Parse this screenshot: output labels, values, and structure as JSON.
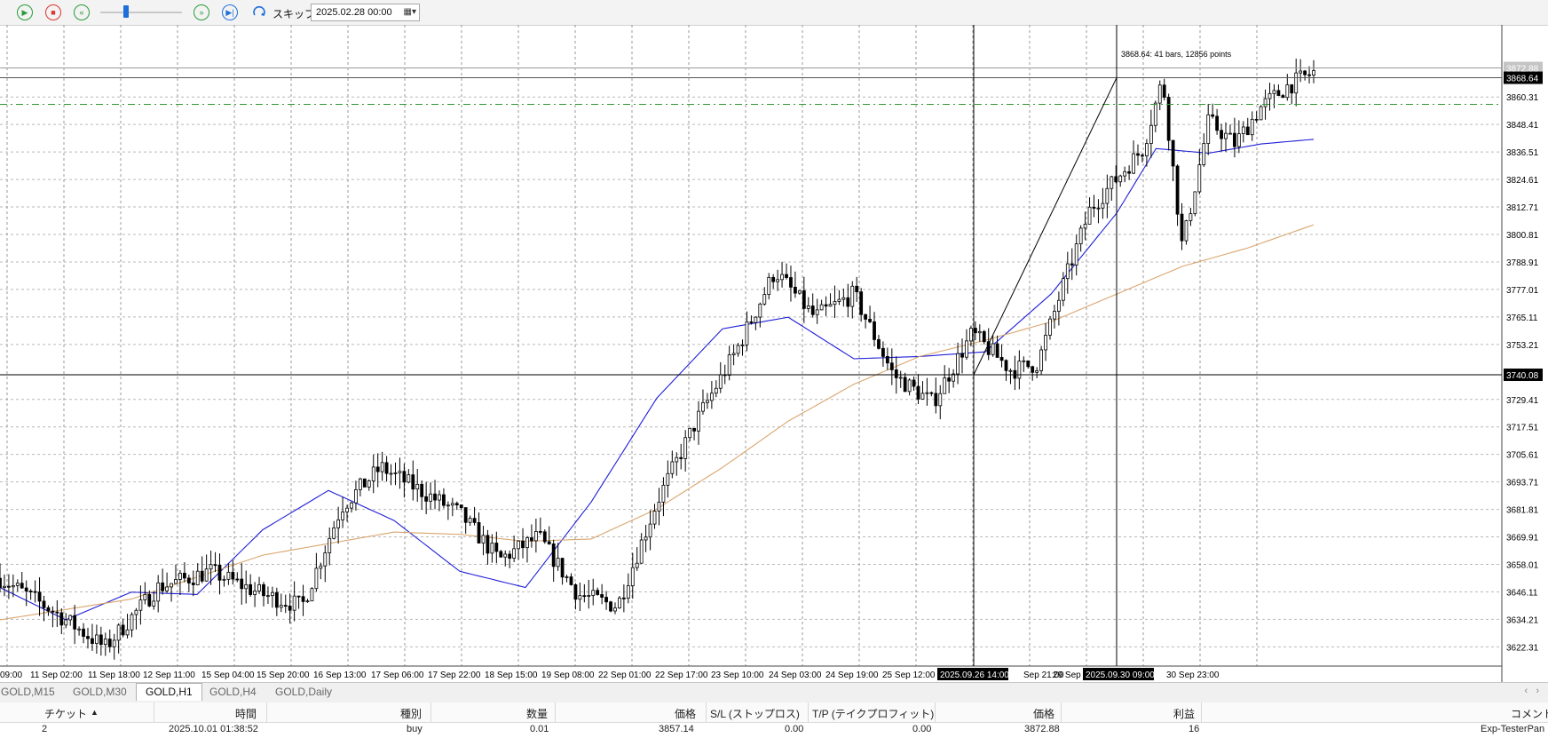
{
  "toolbar": {
    "skip_label": "スキップ",
    "date_value": "2025.02.28 00:00"
  },
  "chart": {
    "price_labels": [
      "3872.88",
      "3868.64",
      "3860.31",
      "3848.41",
      "3836.51",
      "3824.61",
      "3812.71",
      "3800.81",
      "3788.91",
      "3777.01",
      "3765.11",
      "3753.21",
      "3740.08",
      "3729.41",
      "3717.51",
      "3705.61",
      "3693.71",
      "3681.81",
      "3669.91",
      "3658.01",
      "3646.11",
      "3634.21",
      "3622.31"
    ],
    "time_labels": [
      "09:00",
      "11 Sep 02:00",
      "11 Sep 18:00",
      "12 Sep 11:00",
      "15 Sep 04:00",
      "15 Sep 20:00",
      "16 Sep 13:00",
      "17 Sep 06:00",
      "17 Sep 22:00",
      "18 Sep 15:00",
      "19 Sep 08:00",
      "22 Sep 01:00",
      "22 Sep 17:00",
      "23 Sep 10:00",
      "24 Sep 03:00",
      "24 Sep 19:00",
      "25 Sep 12:00",
      "Sep 21:00",
      "29 Sep",
      "30 Sep 23:00"
    ],
    "crosshair_time_labels": [
      "2025.09.26 14:00",
      "2025.09.30 09:00"
    ],
    "current_price_label": "3868.64",
    "ask_price_label": "3872.88",
    "crosshair_price_label": "3740.08",
    "measure_label": "3868.64: 41 bars, 12856 points"
  },
  "chart_data": {
    "type": "candlestick",
    "symbol": "GOLD",
    "timeframe": "H1",
    "ylim": [
      3614,
      3880
    ],
    "levels": {
      "bid": 3868.64,
      "ask": 3872.88,
      "trade_entry": 3857.14,
      "crosshair": 3740.08
    },
    "series": [
      {
        "color": "#000000",
        "x": [
          0,
          0.04,
          0.08,
          0.12,
          0.16,
          0.2,
          0.23,
          0.26,
          0.29,
          0.32,
          0.35,
          0.38,
          0.41,
          0.44,
          0.47,
          0.5,
          0.53,
          0.56,
          0.59,
          0.62,
          0.65,
          0.68,
          0.71,
          0.74,
          0.77,
          0.79,
          0.81,
          0.83,
          0.85,
          0.87,
          0.885,
          0.9,
          0.92,
          0.94,
          0.96,
          0.98,
          1.0
        ],
        "y": [
          3652,
          3638,
          3622,
          3648,
          3655,
          3645,
          3640,
          3683,
          3700,
          3690,
          3680,
          3660,
          3670,
          3645,
          3640,
          3685,
          3720,
          3750,
          3785,
          3765,
          3775,
          3740,
          3728,
          3758,
          3742,
          3745,
          3780,
          3812,
          3825,
          3838,
          3868,
          3795,
          3850,
          3840,
          3856,
          3865,
          3871
        ]
      },
      {
        "color": "#1f1fd8",
        "x": [
          0,
          0.05,
          0.1,
          0.15,
          0.2,
          0.25,
          0.3,
          0.35,
          0.4,
          0.45,
          0.5,
          0.55,
          0.6,
          0.65,
          0.7,
          0.75,
          0.8,
          0.85,
          0.88,
          0.92,
          0.96,
          1.0
        ],
        "y": [
          3648,
          3634,
          3646,
          3645,
          3673,
          3690,
          3677,
          3655,
          3648,
          3685,
          3730,
          3760,
          3765,
          3747,
          3748,
          3750,
          3775,
          3810,
          3838,
          3836,
          3840,
          3842
        ]
      },
      {
        "color": "#d9a66f",
        "x": [
          0,
          0.1,
          0.2,
          0.3,
          0.35,
          0.4,
          0.45,
          0.5,
          0.55,
          0.6,
          0.65,
          0.7,
          0.75,
          0.8,
          0.85,
          0.9,
          0.95,
          1.0
        ],
        "y": [
          3634,
          3643,
          3662,
          3672,
          3671,
          3668,
          3669,
          3682,
          3700,
          3720,
          3736,
          3748,
          3755,
          3763,
          3775,
          3787,
          3795,
          3805
        ]
      }
    ]
  },
  "tabs": [
    "GOLD,M15",
    "GOLD,M30",
    "GOLD,H1",
    "GOLD,H4",
    "GOLD,Daily"
  ],
  "active_tab": "GOLD,H1",
  "trade_table": {
    "headers": [
      "チケット",
      "時間",
      "種別",
      "数量",
      "価格",
      "S/L (ストップロス)",
      "T/P (テイクプロフィット)",
      "価格",
      "利益",
      "コメント"
    ],
    "row": [
      "2",
      "2025.10.01 01:38:52",
      "buy",
      "0.01",
      "3857.14",
      "0.00",
      "0.00",
      "3872.88",
      "16",
      "Exp-TesterPan"
    ]
  }
}
